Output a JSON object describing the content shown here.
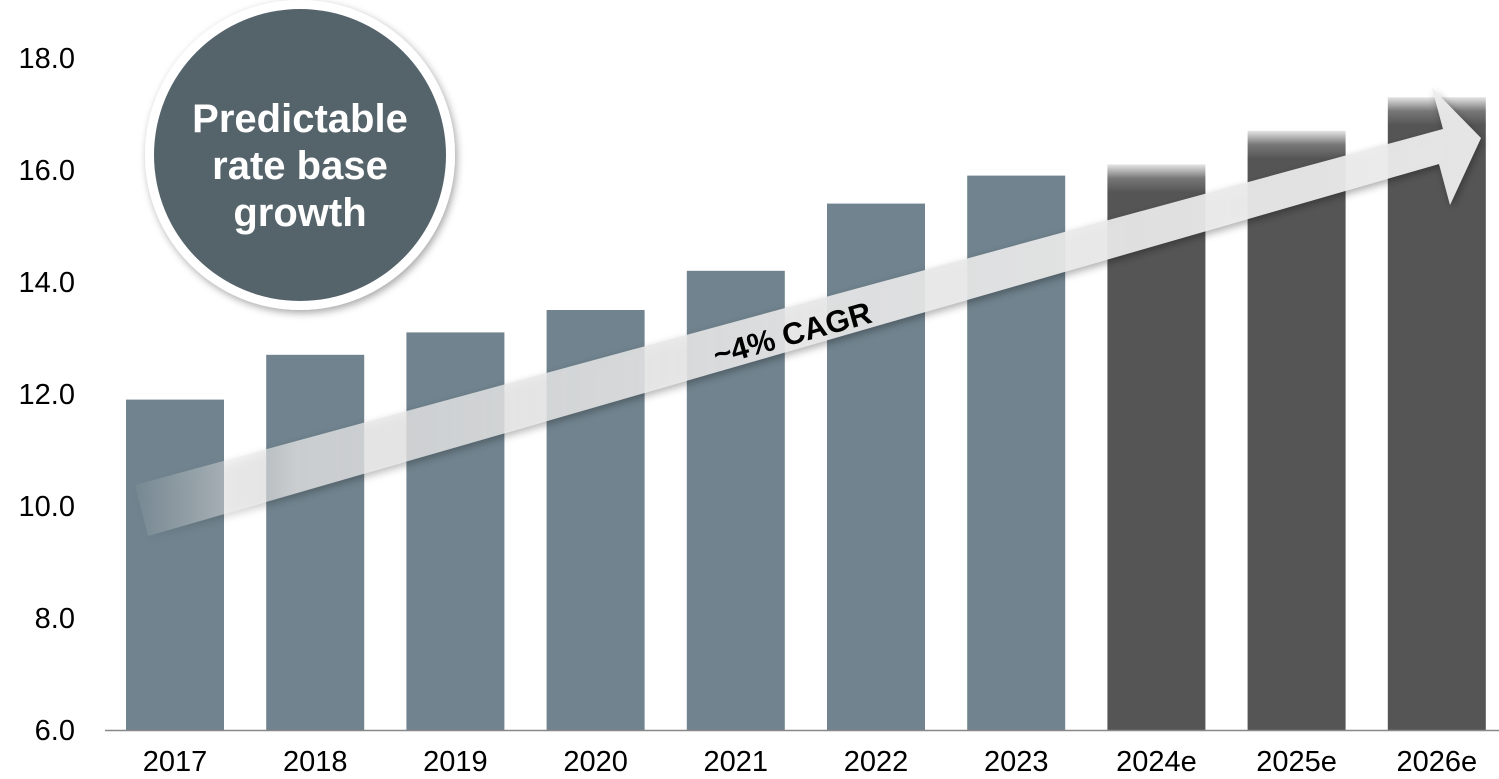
{
  "callout": {
    "lines": [
      "Predictable",
      "rate base",
      "growth"
    ]
  },
  "annotation": {
    "label": "~4% CAGR"
  },
  "colors": {
    "actual_bar": "#70838e",
    "estimate_bar": "#555555",
    "callout_fill": "#55636b",
    "axis_line": "#888888"
  },
  "chart_data": {
    "type": "bar",
    "categories": [
      "2017",
      "2018",
      "2019",
      "2020",
      "2021",
      "2022",
      "2023",
      "2024e",
      "2025e",
      "2026e"
    ],
    "values": [
      11.9,
      12.7,
      13.1,
      13.5,
      14.2,
      15.4,
      15.9,
      16.1,
      16.7,
      17.3
    ],
    "estimated": [
      false,
      false,
      false,
      false,
      false,
      false,
      false,
      true,
      true,
      true
    ],
    "y_tick_labels": [
      "6.0",
      "8.0",
      "10.0",
      "12.0",
      "14.0",
      "16.0",
      "18.0"
    ],
    "ylim": [
      6,
      18
    ],
    "grid": false,
    "title": "",
    "xlabel": "",
    "ylabel": ""
  }
}
